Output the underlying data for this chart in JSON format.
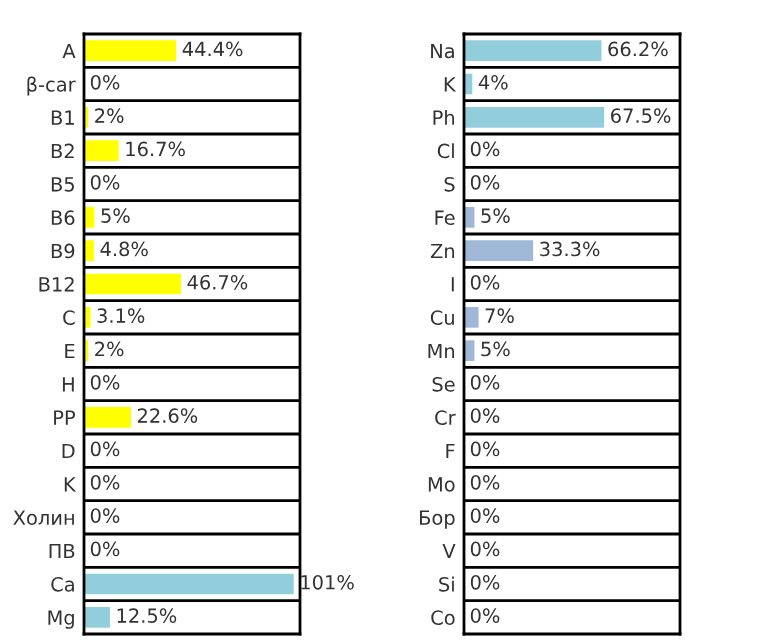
{
  "chart_data": [
    {
      "type": "bar",
      "orientation": "horizontal",
      "categories": [
        "A",
        "β-car",
        "B1",
        "B2",
        "B5",
        "B6",
        "B9",
        "B12",
        "C",
        "E",
        "H",
        "PP",
        "D",
        "K",
        "Холин",
        "ПВ",
        "Ca",
        "Mg"
      ],
      "values": [
        44.4,
        0,
        2,
        16.7,
        0,
        5,
        4.8,
        46.7,
        3.1,
        2,
        0,
        22.6,
        0,
        0,
        0,
        0,
        101,
        12.5
      ],
      "colors": [
        "#ffff00",
        "#ffff00",
        "#ffff00",
        "#ffff00",
        "#ffff00",
        "#ffff00",
        "#ffff00",
        "#ffff00",
        "#ffff00",
        "#ffff00",
        "#ffff00",
        "#ffff00",
        "#ffff00",
        "#ffff00",
        "#ffff00",
        "#ffff00",
        "#92cddc",
        "#92cddc"
      ],
      "value_labels": [
        "44.4%",
        "0%",
        "2%",
        "16.7%",
        "0%",
        "5%",
        "4.8%",
        "46.7%",
        "3.1%",
        "2%",
        "0%",
        "22.6%",
        "0%",
        "0%",
        "0%",
        "0%",
        "101%",
        "12.5%"
      ],
      "tick_labels": "y",
      "grid": "y",
      "legend": false
    },
    {
      "type": "bar",
      "orientation": "horizontal",
      "categories": [
        "Na",
        "K",
        "Ph",
        "Cl",
        "S",
        "Fe",
        "Zn",
        "I",
        "Cu",
        "Mn",
        "Se",
        "Cr",
        "F",
        "Mo",
        "Бор",
        "V",
        "Si",
        "Co"
      ],
      "values": [
        66.2,
        4,
        67.5,
        0,
        0,
        5,
        33.3,
        0,
        7,
        5,
        0,
        0,
        0,
        0,
        0,
        0,
        0,
        0
      ],
      "colors": [
        "#92cddc",
        "#92cddc",
        "#92cddc",
        "#92cddc",
        "#92cddc",
        "#9fb8d8",
        "#9fb8d8",
        "#9fb8d8",
        "#9fb8d8",
        "#9fb8d8",
        "#9fb8d8",
        "#9fb8d8",
        "#9fb8d8",
        "#9fb8d8",
        "#9fb8d8",
        "#9fb8d8",
        "#9fb8d8",
        "#9fb8d8"
      ],
      "value_labels": [
        "66.2%",
        "4%",
        "67.5%",
        "0%",
        "0%",
        "5%",
        "33.3%",
        "0%",
        "7%",
        "5%",
        "0%",
        "0%",
        "0%",
        "0%",
        "0%",
        "0%",
        "0%",
        "0%"
      ],
      "tick_labels": "y",
      "grid": "y",
      "legend": false
    }
  ]
}
